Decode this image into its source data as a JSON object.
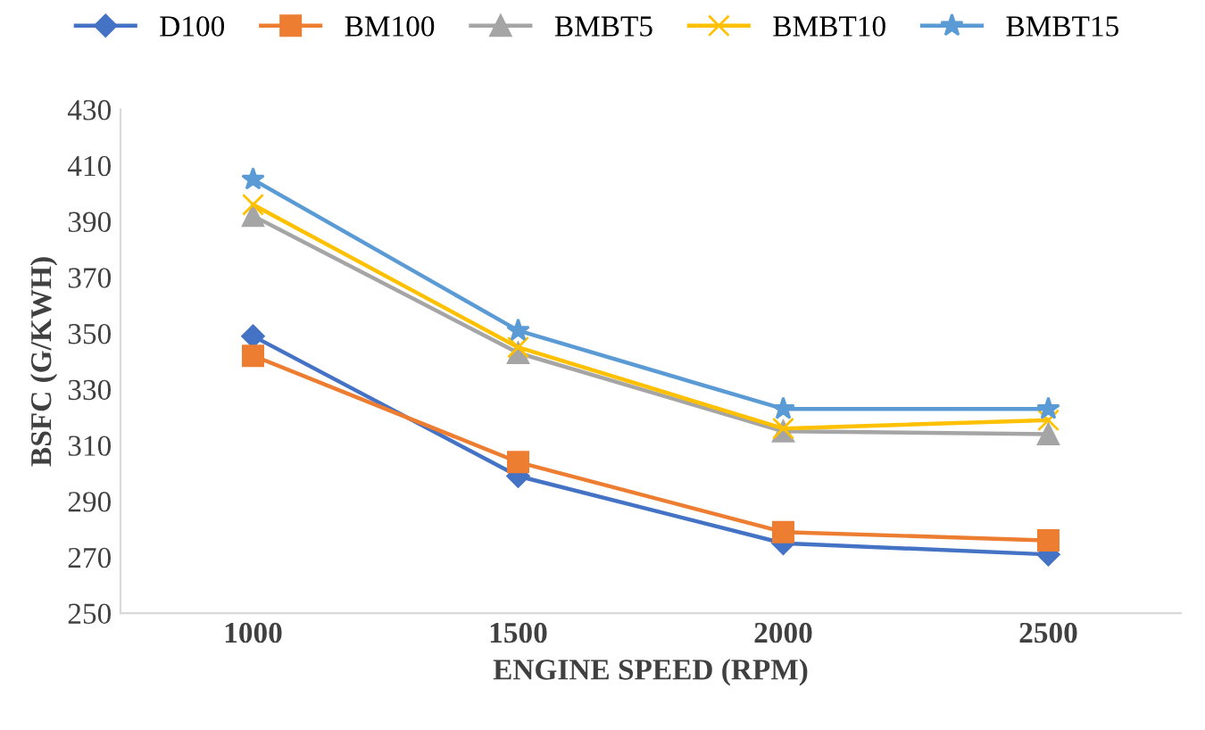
{
  "chart_data": {
    "type": "line",
    "xlabel": "ENGINE SPEED (RPM)",
    "ylabel": "BSFC (G/KWH)",
    "categories": [
      "1000",
      "1500",
      "2000",
      "2500"
    ],
    "ylim": [
      250,
      430
    ],
    "yticks": [
      250,
      270,
      290,
      310,
      330,
      350,
      370,
      390,
      410,
      430
    ],
    "grid": false,
    "legend": "top",
    "series": [
      {
        "name": "D100",
        "color": "#4472c4",
        "marker": "diamond",
        "values": [
          349,
          299,
          275,
          271
        ]
      },
      {
        "name": "BM100",
        "color": "#ed7d31",
        "marker": "square",
        "values": [
          342,
          304,
          279,
          276
        ]
      },
      {
        "name": "BMBT5",
        "color": "#a5a5a5",
        "marker": "triangle",
        "values": [
          392,
          343,
          315,
          314
        ]
      },
      {
        "name": "BMBT10",
        "color": "#ffc000",
        "marker": "cross",
        "values": [
          396,
          345,
          316,
          319
        ]
      },
      {
        "name": "BMBT15",
        "color": "#5b9bd5",
        "marker": "star",
        "values": [
          405,
          351,
          323,
          323
        ]
      }
    ]
  }
}
